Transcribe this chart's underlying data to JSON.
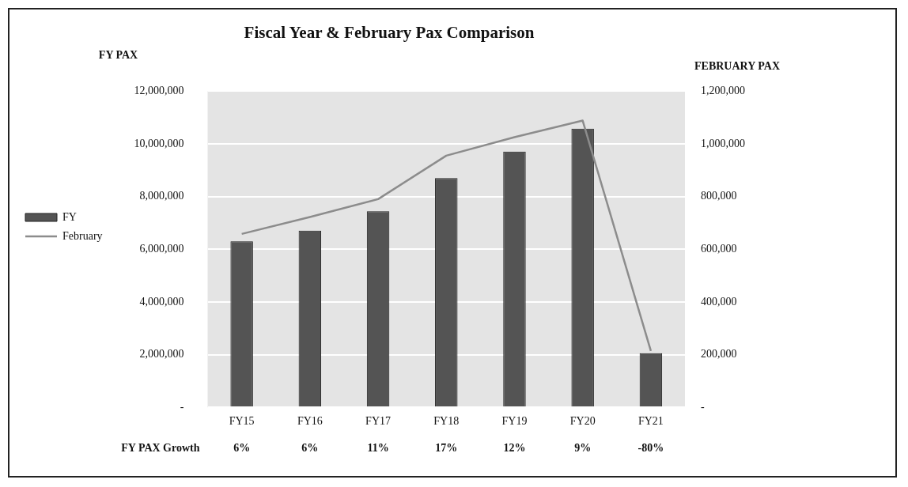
{
  "chart_data": {
    "type": "bar",
    "title": "Fiscal Year & February Pax Comparison",
    "ylabel": "FY PAX",
    "y2label": "FEBRUARY PAX",
    "categories": [
      "FY15",
      "FY16",
      "FY17",
      "FY18",
      "FY19",
      "FY20",
      "FY21"
    ],
    "series": [
      {
        "name": "FY",
        "color": "#545454",
        "values": [
          6300000,
          6700000,
          7440000,
          8700000,
          9700000,
          10570000,
          2050000
        ]
      },
      {
        "name": "February",
        "type": "line",
        "axis": "y2",
        "color": "#8c8c8c",
        "values": [
          658000,
          722000,
          790000,
          955000,
          1025000,
          1088000,
          214000
        ]
      }
    ],
    "ylim": [
      0,
      12000000
    ],
    "yticks": [
      {
        "value": 0,
        "label": "-"
      },
      {
        "value": 2000000,
        "label": "2,000,000"
      },
      {
        "value": 4000000,
        "label": "4,000,000"
      },
      {
        "value": 6000000,
        "label": "6,000,000"
      },
      {
        "value": 8000000,
        "label": "8,000,000"
      },
      {
        "value": 10000000,
        "label": "10,000,000"
      },
      {
        "value": 12000000,
        "label": "12,000,000"
      }
    ],
    "y2lim": [
      0,
      1200000
    ],
    "y2ticks": [
      {
        "value": 0,
        "label": "-"
      },
      {
        "value": 200000,
        "label": "200,000"
      },
      {
        "value": 400000,
        "label": "400,000"
      },
      {
        "value": 600000,
        "label": "600,000"
      },
      {
        "value": 800000,
        "label": "800,000"
      },
      {
        "value": 1000000,
        "label": "1,000,000"
      },
      {
        "value": 1200000,
        "label": "1,200,000"
      }
    ],
    "annotations": [
      "FY PAX Growth",
      "6%",
      "6%",
      "11%",
      "17%",
      "12%",
      "9%",
      "-80%"
    ],
    "grid": "y",
    "legend": "left",
    "marker": "none"
  }
}
